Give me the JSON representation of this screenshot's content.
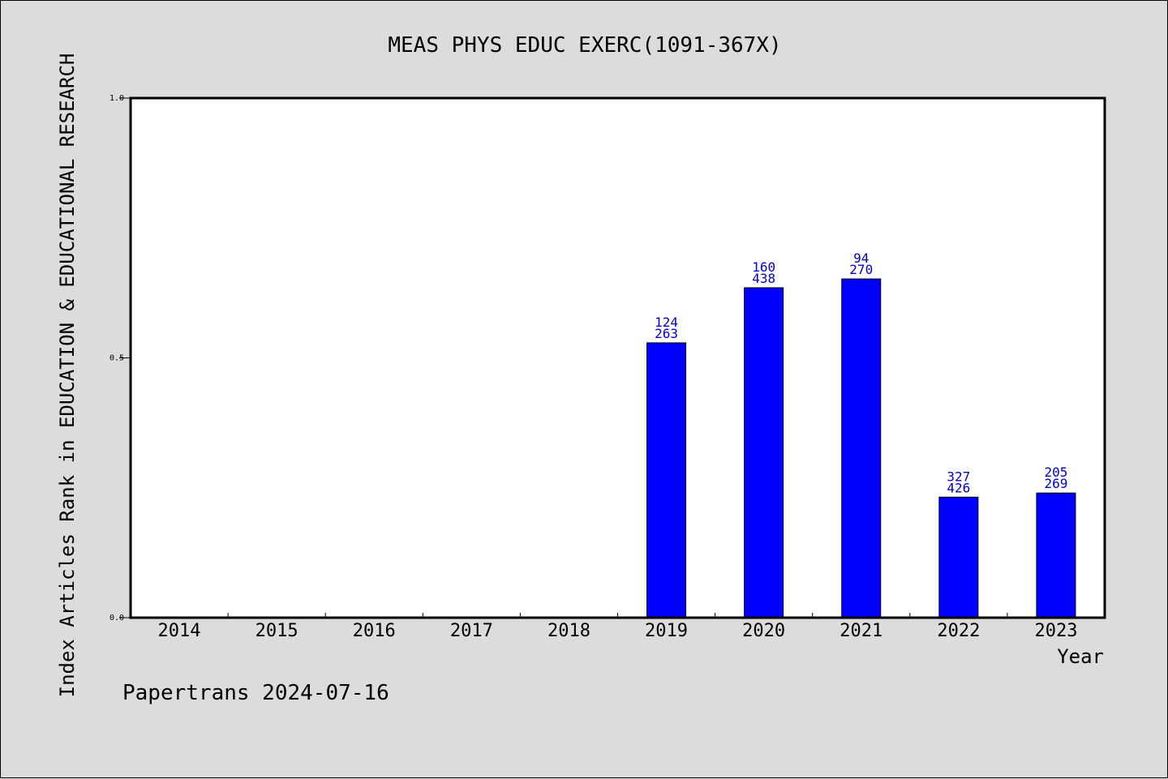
{
  "chart_data": {
    "type": "bar",
    "title": "MEAS PHYS EDUC EXERC(1091-367X)",
    "xlabel": "Year",
    "ylabel": "Index Articles Rank in EDUCATION & EDUCATIONAL RESEARCH",
    "categories": [
      "2014",
      "2015",
      "2016",
      "2017",
      "2018",
      "2019",
      "2020",
      "2021",
      "2022",
      "2023"
    ],
    "values": [
      null,
      null,
      null,
      null,
      null,
      0.529,
      0.635,
      0.652,
      0.232,
      0.24
    ],
    "rank_labels": [
      null,
      null,
      null,
      null,
      null,
      "124",
      "160",
      "94",
      "327",
      "205"
    ],
    "total_labels": [
      null,
      null,
      null,
      null,
      null,
      "263",
      "438",
      "270",
      "426",
      "269"
    ],
    "ylim": [
      0,
      1
    ],
    "yticks": [
      0.0,
      0.5,
      1.0
    ],
    "ytick_labels": [
      "0.0",
      "0.5",
      "1.0"
    ],
    "bar_color": "#0000ff",
    "label_color": "#0000cc",
    "grid": false
  },
  "footer": "Papertrans 2024-07-16"
}
